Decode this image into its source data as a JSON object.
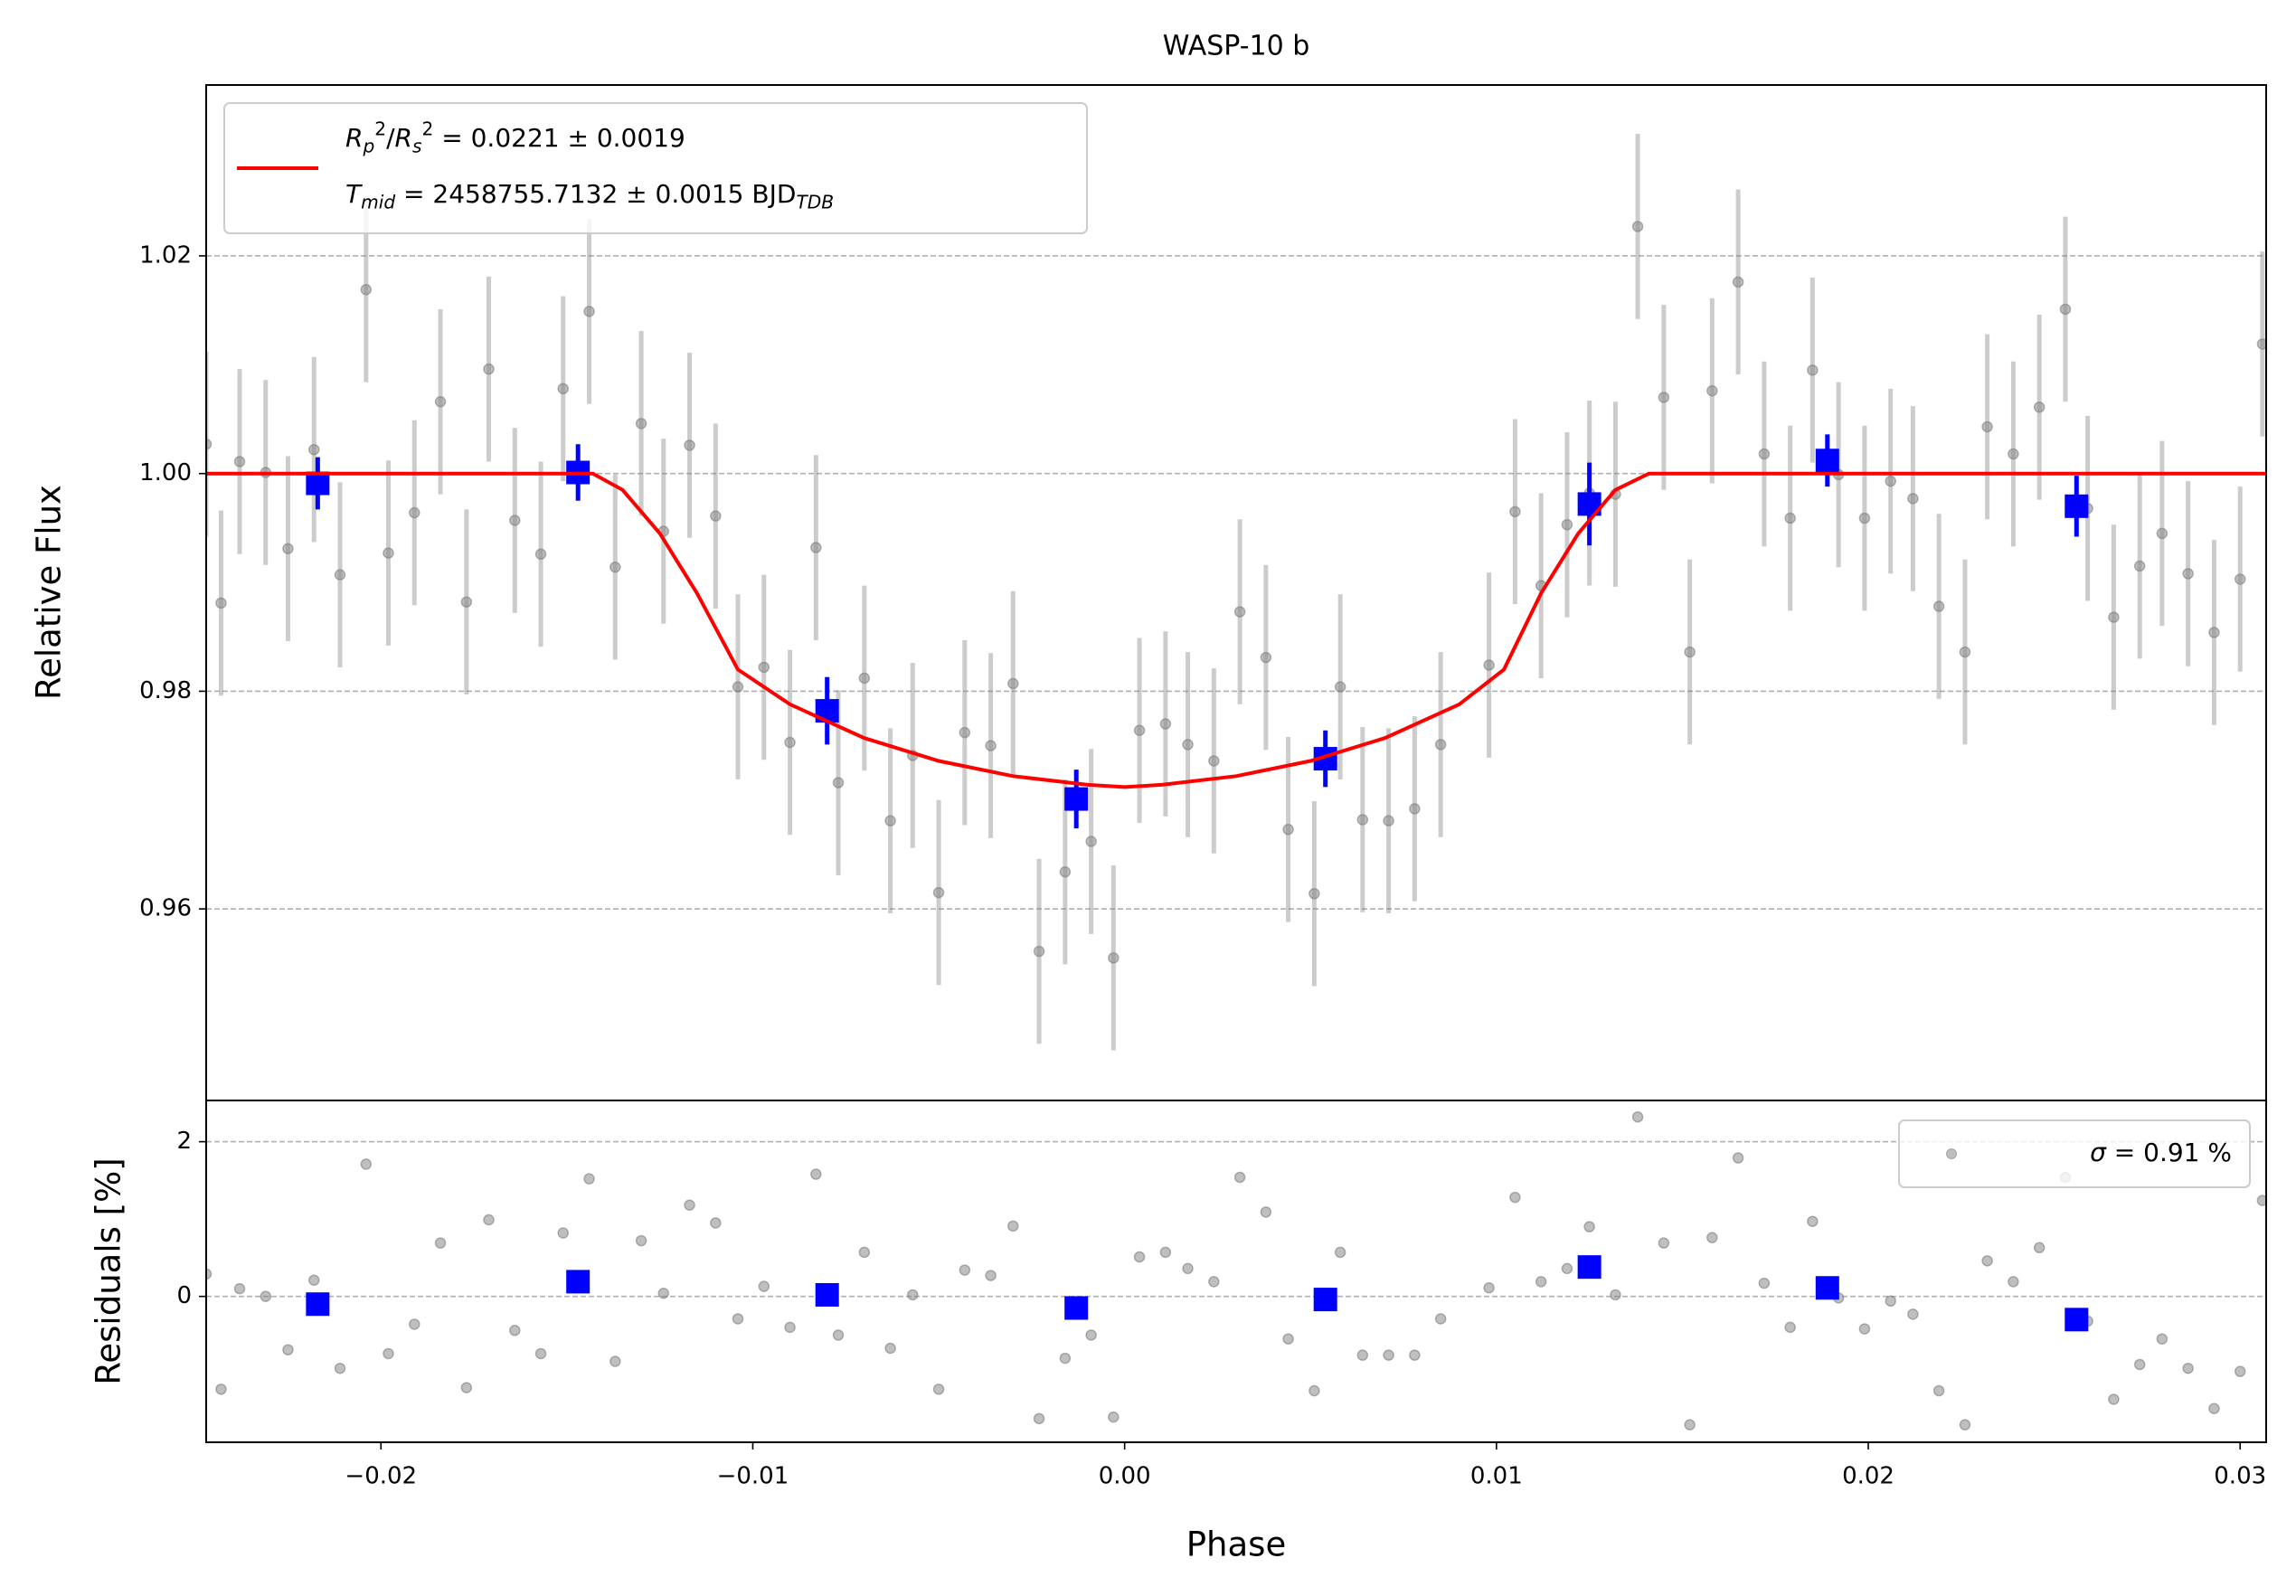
{
  "chart_data": [
    {
      "type": "errorbar",
      "title": "WASP-10 b",
      "ylabel": "Relative Flux",
      "xlim": [
        -0.0247,
        0.0307
      ],
      "ylim": [
        0.9424,
        1.0357
      ],
      "yticks": [
        0.96,
        0.98,
        {
          "value": 1.0,
          "label": "1.00"
        },
        1.02
      ],
      "grid": true,
      "legend": "upper left",
      "series": [
        {
          "color": "#808080",
          "x": [
            -0.0247,
            -0.0243,
            -0.0238,
            -0.0231,
            -0.0225,
            -0.0218,
            -0.0211,
            -0.0204,
            -0.0198,
            -0.0191,
            -0.0184,
            -0.0177,
            -0.0171,
            -0.0164,
            -0.0157,
            -0.0151,
            -0.0144,
            -0.0137,
            -0.013,
            -0.0124,
            -0.0117,
            -0.011,
            -0.0104,
            -0.0097,
            -0.009,
            -0.0083,
            -0.0077,
            -0.007,
            -0.0063,
            -0.0057,
            -0.005,
            -0.0043,
            -0.0036,
            -0.003,
            -0.0023,
            -0.0016,
            -0.0009,
            -0.0003,
            0.0004,
            0.0011,
            0.0017,
            0.0024,
            0.0031,
            0.0038,
            0.0044,
            0.0051,
            0.0058,
            0.0064,
            0.0071,
            0.0078,
            0.0085,
            0.0098,
            0.0105,
            0.0112,
            0.0119,
            0.0125,
            0.0132,
            0.0138,
            0.0145,
            0.0152,
            0.0158,
            0.0165,
            0.0172,
            0.0179,
            0.0185,
            0.0192,
            0.0199,
            0.0206,
            0.0212,
            0.0219,
            0.0226,
            0.0232,
            0.0239,
            0.0246,
            0.0253,
            0.0259,
            0.0266,
            0.0273,
            0.0279,
            0.0286,
            0.0293,
            0.03,
            0.0306
          ],
          "values": [
            1.0027,
            0.9881,
            1.0011,
            1.0001,
            0.9931,
            1.0022,
            0.9907,
            1.0169,
            0.9927,
            0.9964,
            1.0066,
            0.9882,
            1.0096,
            0.9957,
            0.9926,
            1.0078,
            1.0149,
            0.9914,
            1.0046,
            0.9947,
            1.0026,
            0.9961,
            0.9804,
            0.9822,
            0.9753,
            0.9932,
            0.9716,
            0.9812,
            0.9681,
            0.9741,
            0.9615,
            0.9762,
            0.975,
            0.9807,
            0.9561,
            0.9634,
            0.9662,
            0.9555,
            0.9764,
            0.977,
            0.9751,
            0.9736,
            0.9873,
            0.9831,
            0.9673,
            0.9614,
            0.9804,
            0.9682,
            0.9681,
            0.9692,
            0.9751,
            0.9824,
            0.9965,
            0.9897,
            0.9953,
            0.9982,
            0.9981,
            1.0227,
            1.007,
            0.9836,
            1.0076,
            1.0176,
            1.0018,
            0.9959,
            1.0095,
            0.9999,
            0.9959,
            0.9993,
            0.9977,
            0.9878,
            0.9836,
            1.0043,
            1.0018,
            1.0061,
            1.0151,
            0.9968,
            0.9868,
            0.9915,
            0.9945,
            0.9908,
            0.9854,
            0.9903,
            1.0119
          ],
          "yerr": 0.0085
        },
        {
          "color": "#0000ff",
          "x": [
            -0.0217,
            -0.0147,
            -0.008,
            -0.0013,
            0.0054,
            0.0125,
            0.0189,
            0.0256
          ],
          "values": [
            0.9991,
            1.0001,
            0.9782,
            0.9701,
            0.9738,
            0.9972,
            1.0012,
            0.997
          ],
          "errors": [
            0.0024,
            0.0026,
            0.0031,
            0.0027,
            0.0026,
            0.0038,
            0.0024,
            0.0028
          ]
        },
        {
          "color": "#ff0000",
          "name": [
            [
              {
                "text": "R",
                "style": "italic"
              },
              {
                "text": "p",
                "style": "sub-italic"
              },
              {
                "text": "2",
                "style": "sup"
              },
              {
                "text": "/",
                "style": "normal"
              },
              {
                "text": "R",
                "style": "italic"
              },
              {
                "text": "s",
                "style": "sub-italic"
              },
              {
                "text": "2",
                "style": "sup"
              },
              {
                "text": " = 0.0221 ± 0.0019",
                "style": "normal"
              }
            ],
            [
              {
                "text": "T",
                "style": "italic"
              },
              {
                "text": "mid",
                "style": "sub-italic"
              },
              {
                "text": " = 2458755.7132 ± 0.0015 BJD",
                "style": "normal"
              },
              {
                "text": "TDB",
                "style": "sub-italic"
              }
            ]
          ],
          "x": [
            -0.0247,
            -0.0143,
            -0.0135,
            -0.0125,
            -0.0115,
            -0.0104,
            -0.009,
            -0.007,
            -0.005,
            -0.003,
            -0.001,
            0.0,
            0.001,
            0.003,
            0.005,
            0.007,
            0.009,
            0.0102,
            0.0112,
            0.0122,
            0.0132,
            0.0141,
            0.0307
          ],
          "values": [
            1.0,
            1.0,
            0.9985,
            0.9945,
            0.989,
            0.982,
            0.9788,
            0.9757,
            0.9736,
            0.9722,
            0.9714,
            0.9712,
            0.9714,
            0.9722,
            0.9736,
            0.9757,
            0.9788,
            0.982,
            0.989,
            0.9945,
            0.9985,
            1.0,
            1.0
          ]
        }
      ]
    },
    {
      "type": "scatter",
      "ylabel": "Residuals [%]",
      "xlabel": "Phase",
      "xlim": [
        -0.0247,
        0.0307
      ],
      "ylim": [
        -1.886,
        2.533
      ],
      "xticks": [
        {
          "value": -0.02,
          "label": "−0.02"
        },
        {
          "value": -0.01,
          "label": "−0.01"
        },
        {
          "value": 0.0,
          "label": "0.00"
        },
        {
          "value": 0.01,
          "label": "0.01"
        },
        {
          "value": 0.02,
          "label": "0.02"
        },
        {
          "value": 0.03,
          "label": "0.03"
        }
      ],
      "yticks": [
        0,
        2
      ],
      "grid": true,
      "legend": "upper right",
      "series": [
        {
          "color": "#808080",
          "name": [
            [
              {
                "text": "σ",
                "style": "italic"
              },
              {
                "text": " = 0.91 %",
                "style": "normal"
              }
            ]
          ],
          "x": [
            -0.0247,
            -0.0243,
            -0.0238,
            -0.0231,
            -0.0225,
            -0.0218,
            -0.0211,
            -0.0204,
            -0.0198,
            -0.0191,
            -0.0184,
            -0.0177,
            -0.0171,
            -0.0164,
            -0.0157,
            -0.0151,
            -0.0144,
            -0.0137,
            -0.013,
            -0.0124,
            -0.0117,
            -0.011,
            -0.0104,
            -0.0097,
            -0.009,
            -0.0083,
            -0.0077,
            -0.007,
            -0.0063,
            -0.0057,
            -0.005,
            -0.0043,
            -0.0036,
            -0.003,
            -0.0023,
            -0.0016,
            -0.0009,
            -0.0003,
            0.0004,
            0.0011,
            0.0017,
            0.0024,
            0.0031,
            0.0038,
            0.0044,
            0.0051,
            0.0058,
            0.0064,
            0.0071,
            0.0078,
            0.0085,
            0.0098,
            0.0105,
            0.0112,
            0.0119,
            0.0125,
            0.0132,
            0.0138,
            0.0145,
            0.0152,
            0.0158,
            0.0165,
            0.0172,
            0.0179,
            0.0185,
            0.0192,
            0.0199,
            0.0206,
            0.0212,
            0.0219,
            0.0226,
            0.0232,
            0.0239,
            0.0246,
            0.0253,
            0.0259,
            0.0266,
            0.0273,
            0.0279,
            0.0286,
            0.0293,
            0.03,
            0.0306
          ],
          "values": [
            0.29,
            -1.2,
            0.1,
            0.0,
            -0.69,
            0.21,
            -0.93,
            1.71,
            -0.74,
            -0.36,
            0.69,
            -1.18,
            0.99,
            -0.44,
            -0.74,
            0.82,
            1.52,
            -0.84,
            0.72,
            0.04,
            1.18,
            0.95,
            -0.29,
            0.13,
            -0.4,
            1.58,
            -0.5,
            0.57,
            -0.67,
            0.02,
            -1.2,
            0.34,
            0.27,
            0.91,
            -1.58,
            -0.8,
            -0.5,
            -1.56,
            0.51,
            0.57,
            0.36,
            0.19,
            1.54,
            1.09,
            -0.55,
            -1.22,
            0.57,
            -0.76,
            -0.76,
            -0.76,
            -0.29,
            0.11,
            1.28,
            0.19,
            0.36,
            0.9,
            0.02,
            2.32,
            0.69,
            -1.66,
            0.76,
            1.79,
            0.17,
            -0.4,
            0.97,
            -0.02,
            -0.42,
            -0.06,
            -0.23,
            -1.22,
            -1.66,
            0.46,
            0.19,
            0.63,
            1.54,
            -0.32,
            -1.33,
            -0.88,
            -0.55,
            -0.93,
            -1.45,
            -0.97,
            1.24
          ]
        },
        {
          "color": "#0000ff",
          "x": [
            -0.0217,
            -0.0147,
            -0.008,
            -0.0013,
            0.0054,
            0.0125,
            0.0189,
            0.0256
          ],
          "values": [
            -0.1,
            0.19,
            0.02,
            -0.15,
            -0.04,
            0.38,
            0.11,
            -0.3
          ]
        }
      ]
    }
  ]
}
